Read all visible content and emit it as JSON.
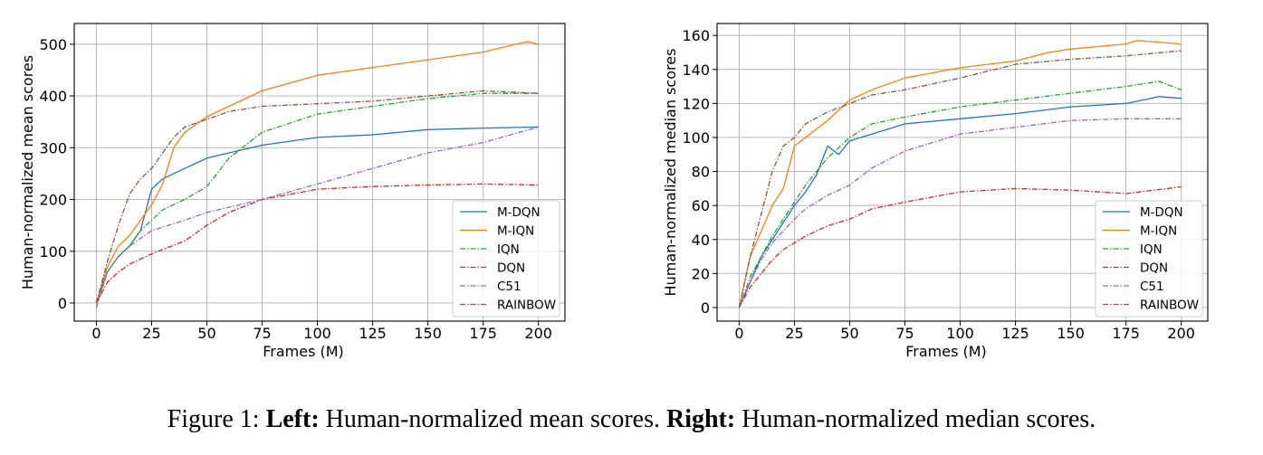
{
  "caption": {
    "prefix": "Figure 1:",
    "left_label": "Left:",
    "left_text": "Human-normalized mean scores.",
    "right_label": "Right:",
    "right_text": "Human-normalized median scores."
  },
  "chart_data": [
    {
      "type": "line",
      "xlabel": "Frames (M)",
      "ylabel": "Human-normalized mean scores",
      "xlim": [
        -10,
        212
      ],
      "ylim": [
        -35,
        540
      ],
      "xticks": [
        0,
        25,
        50,
        75,
        100,
        125,
        150,
        175,
        200
      ],
      "yticks": [
        0,
        100,
        200,
        300,
        400,
        500
      ],
      "grid": true,
      "legend_position": "lower-right",
      "series": [
        {
          "name": "M-DQN",
          "color": "#1f77b4",
          "dash": "solid",
          "x": [
            0,
            5,
            10,
            15,
            20,
            25,
            30,
            35,
            40,
            50,
            60,
            75,
            100,
            125,
            150,
            175,
            200
          ],
          "y": [
            0,
            60,
            90,
            110,
            140,
            220,
            240,
            250,
            260,
            280,
            290,
            305,
            320,
            325,
            335,
            338,
            340
          ]
        },
        {
          "name": "M-IQN",
          "color": "#ff7f0e",
          "dash": "solid",
          "x": [
            0,
            5,
            10,
            15,
            20,
            25,
            30,
            35,
            40,
            50,
            60,
            75,
            100,
            125,
            150,
            175,
            195,
            200
          ],
          "y": [
            0,
            70,
            110,
            130,
            160,
            190,
            230,
            300,
            330,
            360,
            380,
            410,
            440,
            455,
            470,
            485,
            505,
            500
          ]
        },
        {
          "name": "IQN",
          "color": "#2ca02c",
          "dash": "dashdot",
          "x": [
            0,
            5,
            10,
            15,
            20,
            25,
            30,
            40,
            50,
            60,
            75,
            100,
            125,
            150,
            175,
            200
          ],
          "y": [
            0,
            60,
            90,
            110,
            140,
            160,
            180,
            200,
            225,
            280,
            330,
            365,
            380,
            395,
            405,
            405
          ]
        },
        {
          "name": "DQN",
          "color": "#d62728",
          "dash": "dashdot",
          "x": [
            0,
            5,
            10,
            15,
            25,
            40,
            50,
            60,
            75,
            100,
            125,
            150,
            175,
            200
          ],
          "y": [
            0,
            40,
            60,
            75,
            95,
            120,
            150,
            175,
            200,
            220,
            225,
            228,
            230,
            228
          ]
        },
        {
          "name": "C51",
          "color": "#9467bd",
          "dash": "dashdot",
          "x": [
            0,
            5,
            10,
            15,
            25,
            40,
            50,
            60,
            75,
            100,
            125,
            150,
            175,
            200
          ],
          "y": [
            -10,
            60,
            90,
            110,
            140,
            160,
            175,
            185,
            200,
            230,
            260,
            290,
            310,
            340
          ]
        },
        {
          "name": "RAINBOW",
          "color": "#8c564b",
          "dash": "dashdot",
          "x": [
            0,
            5,
            10,
            15,
            20,
            25,
            30,
            35,
            40,
            50,
            60,
            75,
            100,
            125,
            150,
            175,
            200
          ],
          "y": [
            0,
            80,
            150,
            210,
            240,
            260,
            290,
            320,
            340,
            355,
            370,
            380,
            385,
            390,
            400,
            410,
            405
          ]
        }
      ]
    },
    {
      "type": "line",
      "xlabel": "Frames (M)",
      "ylabel": "Human-normalized median scores",
      "xlim": [
        -10,
        212
      ],
      "ylim": [
        -8,
        167
      ],
      "xticks": [
        0,
        25,
        50,
        75,
        100,
        125,
        150,
        175,
        200
      ],
      "yticks": [
        0,
        20,
        40,
        60,
        80,
        100,
        120,
        140,
        160
      ],
      "grid": true,
      "legend_position": "lower-right",
      "series": [
        {
          "name": "M-DQN",
          "color": "#1f77b4",
          "dash": "solid",
          "x": [
            0,
            5,
            10,
            15,
            20,
            25,
            30,
            35,
            40,
            45,
            50,
            60,
            75,
            100,
            125,
            150,
            175,
            190,
            200
          ],
          "y": [
            0,
            15,
            30,
            40,
            50,
            60,
            68,
            78,
            95,
            90,
            98,
            102,
            108,
            111,
            114,
            118,
            120,
            124,
            123
          ]
        },
        {
          "name": "M-IQN",
          "color": "#ff7f0e",
          "dash": "solid",
          "x": [
            0,
            5,
            10,
            15,
            20,
            25,
            30,
            40,
            50,
            60,
            75,
            100,
            125,
            140,
            150,
            175,
            180,
            200
          ],
          "y": [
            0,
            30,
            45,
            60,
            70,
            95,
            100,
            110,
            122,
            128,
            135,
            141,
            145,
            150,
            152,
            155,
            157,
            155
          ]
        },
        {
          "name": "IQN",
          "color": "#2ca02c",
          "dash": "dashdot",
          "x": [
            0,
            5,
            10,
            15,
            20,
            25,
            30,
            40,
            50,
            60,
            75,
            100,
            125,
            150,
            175,
            190,
            200
          ],
          "y": [
            0,
            18,
            30,
            42,
            52,
            62,
            72,
            88,
            100,
            108,
            112,
            118,
            122,
            126,
            130,
            133,
            128
          ]
        },
        {
          "name": "DQN",
          "color": "#d62728",
          "dash": "dashdot",
          "x": [
            0,
            5,
            10,
            15,
            20,
            25,
            30,
            40,
            50,
            60,
            75,
            100,
            125,
            150,
            175,
            200
          ],
          "y": [
            0,
            12,
            20,
            28,
            34,
            38,
            42,
            48,
            52,
            58,
            62,
            68,
            70,
            69,
            67,
            71
          ]
        },
        {
          "name": "C51",
          "color": "#9467bd",
          "dash": "dashdot",
          "x": [
            0,
            5,
            10,
            15,
            20,
            25,
            30,
            40,
            50,
            60,
            75,
            100,
            125,
            150,
            175,
            200
          ],
          "y": [
            0,
            15,
            28,
            38,
            45,
            52,
            58,
            66,
            72,
            82,
            92,
            102,
            106,
            110,
            111,
            111
          ]
        },
        {
          "name": "RAINBOW",
          "color": "#8c564b",
          "dash": "dashdot",
          "x": [
            0,
            5,
            10,
            15,
            20,
            25,
            30,
            40,
            50,
            60,
            75,
            100,
            125,
            150,
            175,
            200
          ],
          "y": [
            0,
            30,
            55,
            80,
            95,
            100,
            108,
            115,
            120,
            125,
            128,
            135,
            143,
            146,
            148,
            151
          ]
        }
      ]
    }
  ]
}
